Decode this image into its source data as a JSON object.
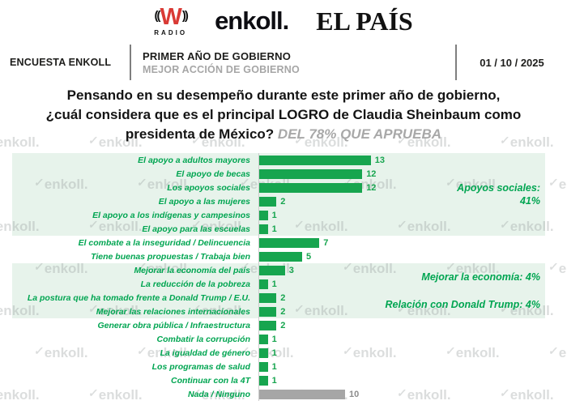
{
  "header": {
    "wradio": {
      "waves_left": "((",
      "w": "W",
      "waves_right": "))",
      "radio": "RADIO"
    },
    "enkoll": "enkoll.",
    "elpais": "EL PAÍS"
  },
  "subheader": {
    "left_label": "ENCUESTA ENKOLL",
    "title": "PRIMER AÑO DE GOBIERNO",
    "subtitle": "MEJOR ACCIÓN DE GOBIERNO",
    "date": "01 / 10 / 2025"
  },
  "question": {
    "line1": "Pensando en su desempeño durante este primer año de gobierno,",
    "line2": "¿cuál considera que es el principal LOGRO de Claudia Sheinbaum como",
    "line3": "presidenta de México?",
    "highlight": "DEL 78% QUE APRUEBA"
  },
  "watermark": {
    "text": "enkoll.",
    "glyph": "✓"
  },
  "chart_data": {
    "type": "bar",
    "orientation": "horizontal",
    "title": "Principal logro de Claudia Sheinbaum (del 78% que aprueba)",
    "categories": [
      "El apoyo a adultos mayores",
      "El apoyo de becas",
      "Los apoyos sociales",
      "El apoyo a las mujeres",
      "El apoyo a los indígenas y campesinos",
      "El apoyo para las escuelas",
      "El combate a la inseguridad / Delincuencia",
      "Tiene buenas propuestas / Trabaja bien",
      "Mejorar la economía del país",
      "La reducción de la pobreza",
      "La postura que ha tomado frente a Donald Trump / E.U.",
      "Mejorar las relaciones internacionales",
      "Generar obra pública / Infraestructura",
      "Combatir la corrupción",
      "La igualdad de género",
      "Los programas de salud",
      "Continuar con la 4T",
      "Nada / Ninguno"
    ],
    "values": [
      13,
      12,
      12,
      2,
      1,
      1,
      7,
      5,
      3,
      1,
      2,
      2,
      2,
      1,
      1,
      1,
      1,
      10
    ],
    "bar_color": "#17a54f",
    "bar_color_nada": "#a6a6a6",
    "value_color": "#17a54f",
    "value_color_nada": "#8c8c8c",
    "label_color": "#00a551",
    "band_color": "#e7f3eb",
    "xlim": [
      0,
      33
    ],
    "gridlines": false,
    "highlight_groups": [
      {
        "start_row": 0,
        "end_row": 5,
        "annotation": "Apoyos sociales:\n41%"
      },
      {
        "start_row": 8,
        "end_row": 9,
        "annotation": "Mejorar la economía: 4%"
      },
      {
        "start_row": 10,
        "end_row": 11,
        "annotation": "Relación con Donald Trump: 4%"
      }
    ]
  }
}
